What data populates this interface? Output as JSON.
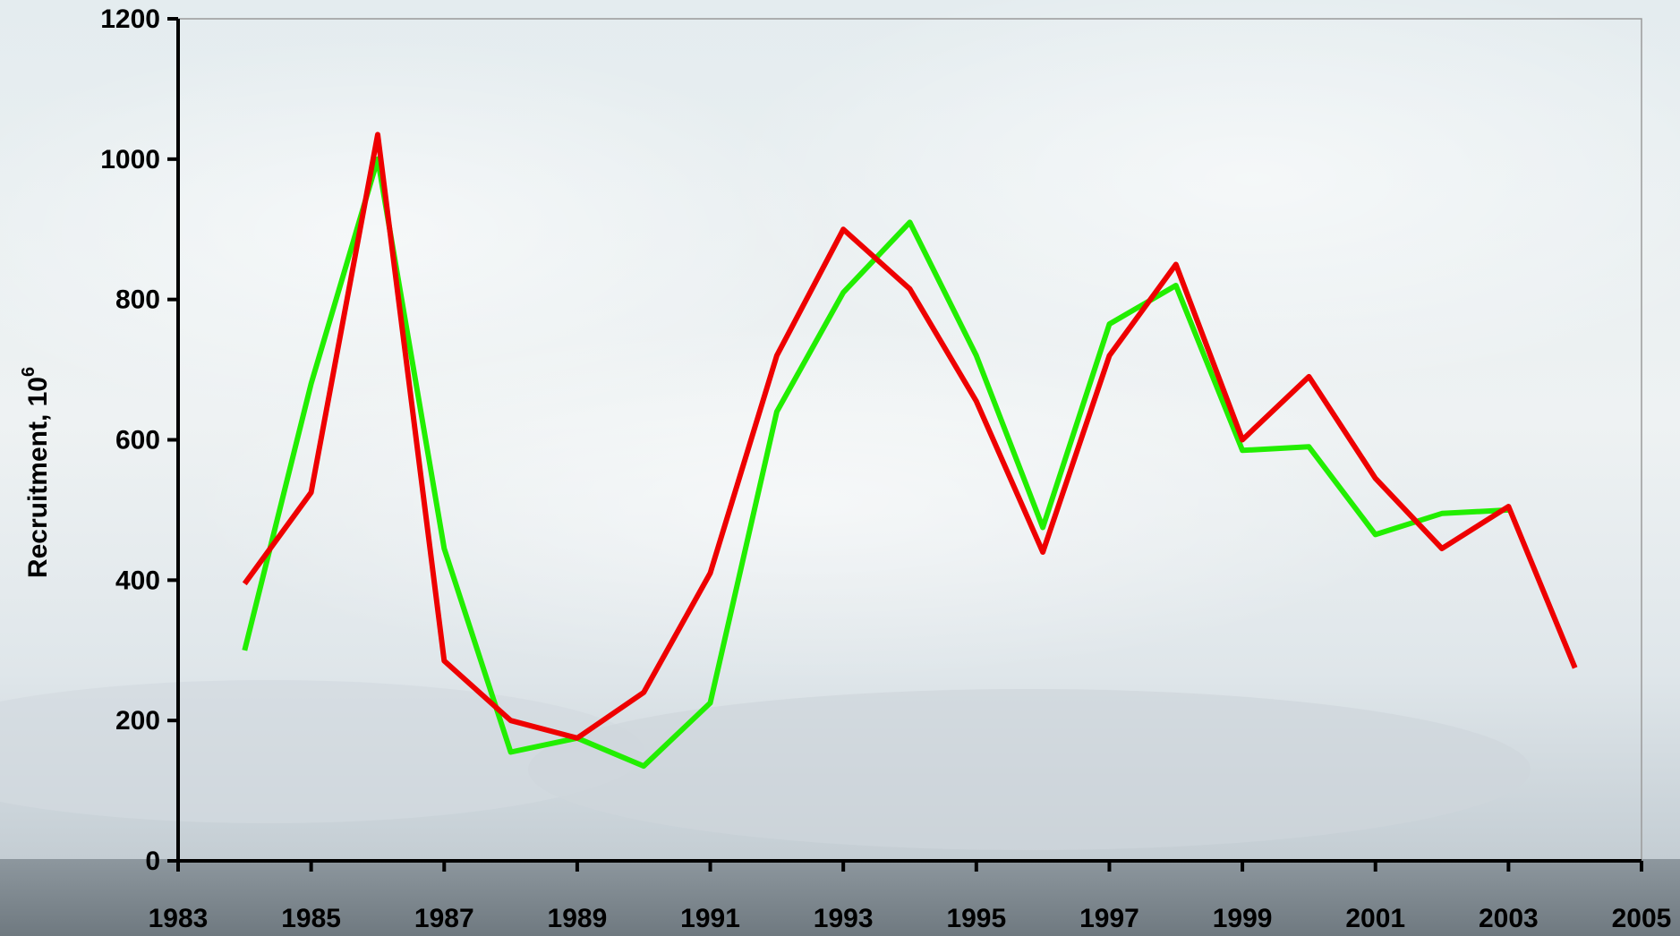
{
  "chart_data": {
    "type": "line",
    "title": "",
    "xlabel": "",
    "ylabel": "Recruitment, 10",
    "ylabel_superscript": "6",
    "xlim": [
      1983,
      2005
    ],
    "ylim": [
      0,
      1200
    ],
    "x_ticks": [
      "1983",
      "1985",
      "1987",
      "1989",
      "1991",
      "1993",
      "1995",
      "1997",
      "1999",
      "2001",
      "2003",
      "2005"
    ],
    "y_ticks": [
      "0",
      "200",
      "400",
      "600",
      "800",
      "1000",
      "1200"
    ],
    "grid": false,
    "legend": "none",
    "series": [
      {
        "color": "#22ee00",
        "x": [
          1984,
          1985,
          1986,
          1987,
          1988,
          1989,
          1990,
          1991,
          1992,
          1993,
          1994,
          1995,
          1996,
          1997,
          1998,
          1999,
          2000,
          2001,
          2002,
          2003
        ],
        "values": [
          300,
          680,
          1000,
          445,
          155,
          175,
          135,
          225,
          640,
          810,
          910,
          720,
          475,
          765,
          820,
          585,
          590,
          465,
          495,
          500
        ]
      },
      {
        "color": "#ee0000",
        "x": [
          1984,
          1985,
          1986,
          1987,
          1988,
          1989,
          1990,
          1991,
          1992,
          1993,
          1994,
          1995,
          1996,
          1997,
          1998,
          1999,
          2000,
          2001,
          2002,
          2003,
          2004
        ],
        "values": [
          395,
          525,
          1035,
          285,
          200,
          175,
          240,
          410,
          720,
          900,
          815,
          655,
          440,
          720,
          850,
          600,
          690,
          545,
          445,
          505,
          275
        ]
      }
    ]
  }
}
